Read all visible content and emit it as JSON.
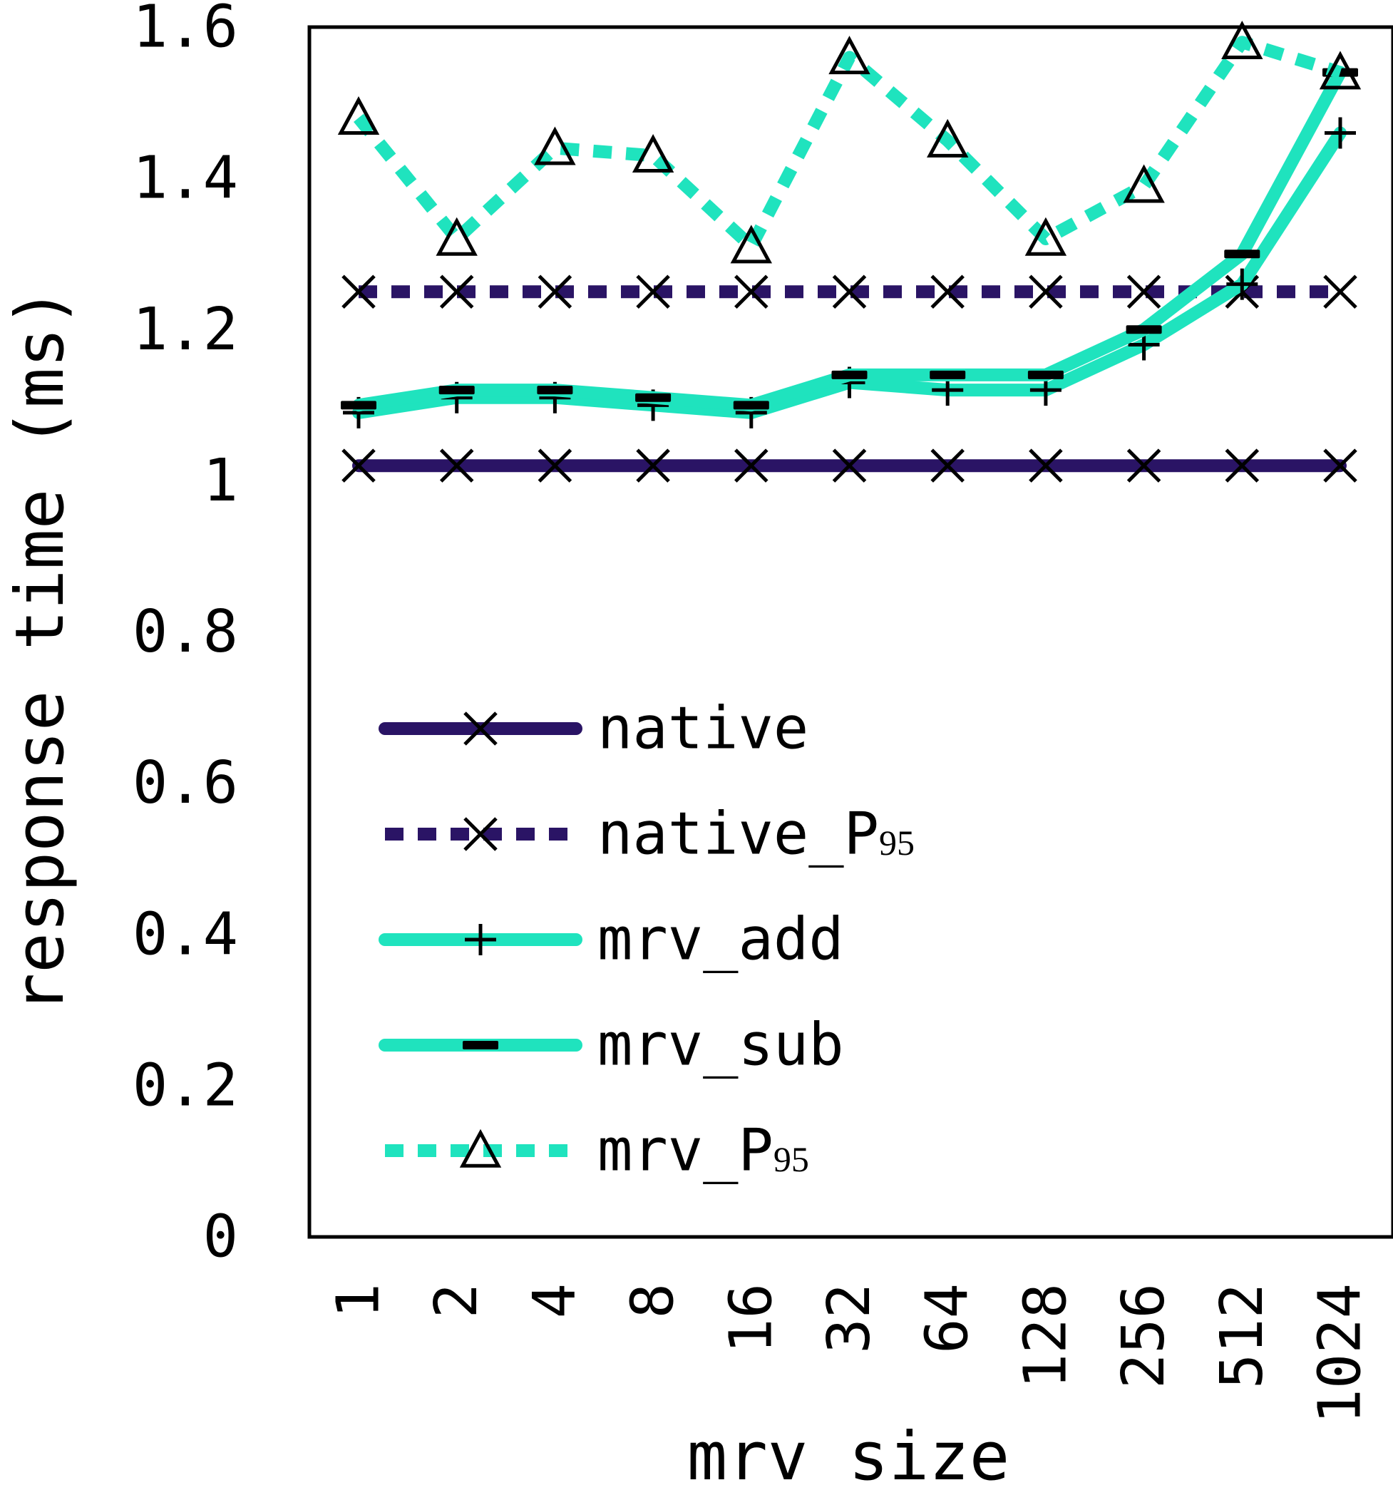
{
  "chart_data": {
    "type": "line",
    "xlabel": "mrv size",
    "ylabel": "response time (ms)",
    "ylim": [
      0,
      1.6
    ],
    "yticks": [
      "0",
      "0.2",
      "0.4",
      "0.6",
      "0.8",
      "1",
      "1.2",
      "1.4",
      "1.6"
    ],
    "categories": [
      "1",
      "2",
      "4",
      "8",
      "16",
      "32",
      "64",
      "128",
      "256",
      "512",
      "1024"
    ],
    "grid": false,
    "legend_position": "bottom-left",
    "series": [
      {
        "name": "native",
        "sub": "",
        "color": "#2a1465",
        "style": "solid",
        "marker": "x",
        "values": [
          1.02,
          1.02,
          1.02,
          1.02,
          1.02,
          1.02,
          1.02,
          1.02,
          1.02,
          1.02,
          1.02
        ]
      },
      {
        "name": "native_P",
        "sub": "95",
        "color": "#2a1465",
        "style": "dotted",
        "marker": "x",
        "values": [
          1.25,
          1.25,
          1.25,
          1.25,
          1.25,
          1.25,
          1.25,
          1.25,
          1.25,
          1.25,
          1.25
        ]
      },
      {
        "name": "mrv_add",
        "sub": "",
        "color": "#1fe3be",
        "style": "solid",
        "marker": "plus",
        "values": [
          1.09,
          1.11,
          1.11,
          1.1,
          1.09,
          1.13,
          1.12,
          1.12,
          1.18,
          1.26,
          1.46
        ]
      },
      {
        "name": "mrv_sub",
        "sub": "",
        "color": "#1fe3be",
        "style": "solid",
        "marker": "minus",
        "values": [
          1.1,
          1.12,
          1.12,
          1.11,
          1.1,
          1.14,
          1.14,
          1.14,
          1.2,
          1.3,
          1.54
        ]
      },
      {
        "name": "mrv_P",
        "sub": "95",
        "color": "#1fe3be",
        "style": "dotted",
        "marker": "triangle",
        "values": [
          1.48,
          1.32,
          1.44,
          1.43,
          1.31,
          1.56,
          1.45,
          1.32,
          1.39,
          1.58,
          1.54
        ]
      }
    ]
  }
}
